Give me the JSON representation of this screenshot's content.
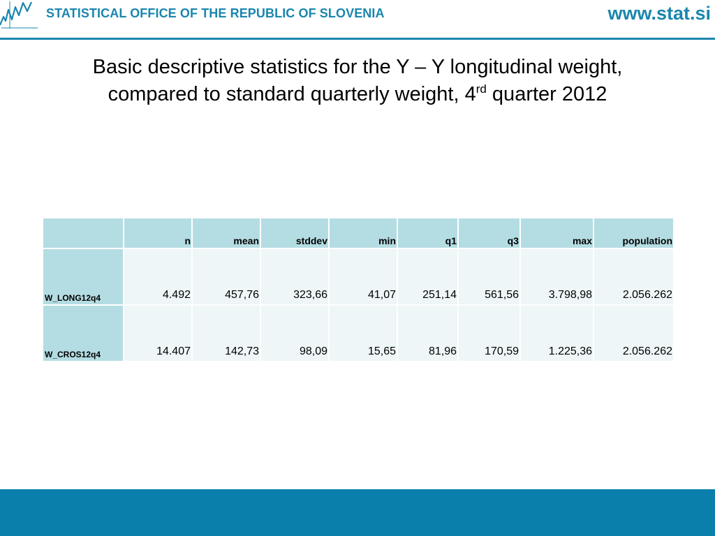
{
  "header": {
    "org_name": "STATISTICAL OFFICE OF THE REPUBLIC OF SLOVENIA",
    "url": "www.stat.si",
    "brand_color": "#1a86ad",
    "logo_icon": "statistical-office-logo-icon"
  },
  "title": {
    "line1": "Basic descriptive statistics for the Y – Y longitudinal weight,",
    "line2_before": "compared to standard quarterly weight, 4",
    "line2_sup": "rd",
    "line2_after": " quarter 2012"
  },
  "table": {
    "columns": [
      "",
      "n",
      "mean",
      "stddev",
      "min",
      "q1",
      "q3",
      "max",
      "population"
    ],
    "rows": [
      {
        "label": "W_LONG12q4",
        "values": [
          "4.492",
          "457,76",
          "323,66",
          "41,07",
          "251,14",
          "561,56",
          "3.798,98",
          "2.056.262"
        ]
      },
      {
        "label": "W_CROS12q4",
        "values": [
          "14.407",
          "142,73",
          "98,09",
          "15,65",
          "81,96",
          "170,59",
          "1.225,36",
          "2.056.262"
        ]
      }
    ],
    "header_color": "#b4dde3",
    "cell_color": "#eef6f7"
  },
  "footer": {
    "bar_color": "#0a7fac"
  }
}
